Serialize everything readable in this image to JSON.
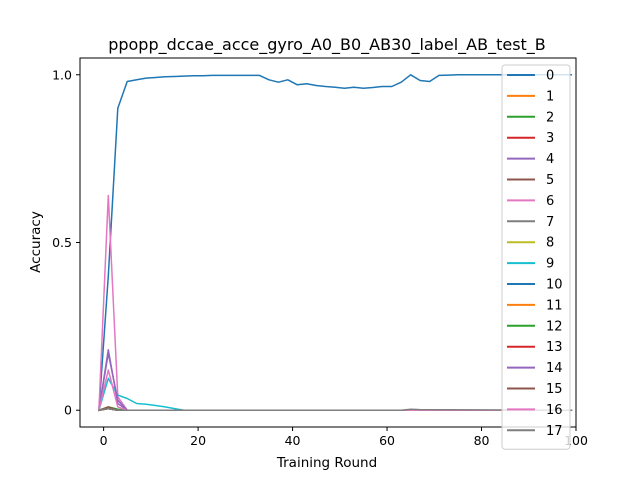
{
  "chart_data": {
    "type": "line",
    "title": "ppopp_dccae_acce_gyro_A0_B0_AB30_label_AB_test_B",
    "xlabel": "Training Round",
    "ylabel": "Accuracy",
    "xlim": [
      -5,
      100
    ],
    "ylim": [
      -0.05,
      1.05
    ],
    "x_ticks": [
      0,
      20,
      40,
      60,
      80,
      100
    ],
    "x_tick_labels": [
      "0",
      "20",
      "40",
      "60",
      "80",
      "100"
    ],
    "y_ticks": [
      0,
      0.5,
      1.0
    ],
    "y_tick_labels": [
      "0",
      "0.5",
      "1.0"
    ],
    "legend_position": "right",
    "series": [
      {
        "name": "0",
        "color": "#1f77b4",
        "x": [
          -1,
          1,
          3,
          5,
          7,
          9,
          11,
          13,
          15,
          17,
          19,
          21,
          23,
          25,
          27,
          29,
          31,
          33,
          35,
          37,
          39,
          41,
          43,
          45,
          47,
          49,
          51,
          53,
          55,
          57,
          59,
          61,
          63,
          65,
          67,
          69,
          71,
          73,
          75,
          77,
          79,
          81,
          83,
          85,
          87,
          89,
          91,
          93,
          95,
          97,
          99
        ],
        "y": [
          0,
          0.4,
          0.9,
          0.98,
          0.985,
          0.99,
          0.992,
          0.994,
          0.995,
          0.996,
          0.997,
          0.997,
          0.998,
          0.998,
          0.998,
          0.998,
          0.998,
          0.998,
          0.985,
          0.978,
          0.985,
          0.97,
          0.973,
          0.968,
          0.965,
          0.963,
          0.96,
          0.963,
          0.96,
          0.962,
          0.965,
          0.965,
          0.978,
          1.0,
          0.983,
          0.98,
          0.998,
          0.999,
          1.0,
          1.0,
          1.0,
          1.0,
          1.0,
          1.0,
          1.0,
          1.0,
          1.0,
          1.0,
          1.0,
          1.0,
          1.0
        ]
      },
      {
        "name": "1",
        "color": "#ff7f0e",
        "x": [
          -1,
          1,
          3,
          5,
          99
        ],
        "y": [
          0,
          0.005,
          0,
          0,
          0
        ]
      },
      {
        "name": "2",
        "color": "#2ca02c",
        "x": [
          -1,
          1,
          3,
          5,
          99
        ],
        "y": [
          0,
          0.01,
          0.003,
          0,
          0
        ]
      },
      {
        "name": "3",
        "color": "#d62728",
        "x": [
          -1,
          1,
          3,
          5,
          99
        ],
        "y": [
          0,
          0.005,
          0,
          0,
          0
        ]
      },
      {
        "name": "4",
        "color": "#9467bd",
        "x": [
          -1,
          1,
          3,
          5,
          99
        ],
        "y": [
          0,
          0.18,
          0.02,
          0,
          0
        ]
      },
      {
        "name": "5",
        "color": "#8c564b",
        "x": [
          -1,
          1,
          3,
          5,
          99
        ],
        "y": [
          0,
          0.01,
          0,
          0,
          0
        ]
      },
      {
        "name": "6",
        "color": "#e377c2",
        "x": [
          -1,
          1,
          3,
          5,
          99
        ],
        "y": [
          0,
          0.64,
          0.04,
          0,
          0
        ]
      },
      {
        "name": "7",
        "color": "#7f7f7f",
        "x": [
          -1,
          1,
          3,
          5,
          99
        ],
        "y": [
          0,
          0.005,
          0,
          0,
          0
        ]
      },
      {
        "name": "8",
        "color": "#bcbd22",
        "x": [
          -1,
          1,
          3,
          5,
          99
        ],
        "y": [
          0,
          0.005,
          0,
          0,
          0
        ]
      },
      {
        "name": "9",
        "color": "#17becf",
        "x": [
          -1,
          1,
          3,
          5,
          7,
          9,
          11,
          13,
          15,
          17,
          99
        ],
        "y": [
          0,
          0.095,
          0.045,
          0.035,
          0.02,
          0.018,
          0.014,
          0.01,
          0.005,
          0,
          0
        ]
      },
      {
        "name": "10",
        "color": "#1f77b4",
        "x": [
          -1,
          1,
          3,
          5,
          99
        ],
        "y": [
          0,
          0.005,
          0,
          0,
          0
        ]
      },
      {
        "name": "11",
        "color": "#ff7f0e",
        "x": [
          -1,
          1,
          3,
          5,
          99
        ],
        "y": [
          0,
          0.005,
          0,
          0,
          0
        ]
      },
      {
        "name": "12",
        "color": "#2ca02c",
        "x": [
          -1,
          1,
          3,
          5,
          99
        ],
        "y": [
          0,
          0.005,
          0,
          0,
          0
        ]
      },
      {
        "name": "13",
        "color": "#d62728",
        "x": [
          -1,
          1,
          3,
          5,
          99
        ],
        "y": [
          0,
          0.005,
          0,
          0,
          0
        ]
      },
      {
        "name": "14",
        "color": "#9467bd",
        "x": [
          -1,
          1,
          3,
          5,
          99
        ],
        "y": [
          0,
          0.17,
          0.03,
          0,
          0
        ]
      },
      {
        "name": "15",
        "color": "#8c564b",
        "x": [
          -1,
          1,
          3,
          5,
          99
        ],
        "y": [
          0,
          0.005,
          0,
          0,
          0
        ]
      },
      {
        "name": "16",
        "color": "#e377c2",
        "x": [
          -1,
          1,
          3,
          5,
          99
        ],
        "y": [
          0,
          0.12,
          0.01,
          0,
          0
        ]
      },
      {
        "name": "17",
        "color": "#7f7f7f",
        "x": [
          -1,
          1,
          3,
          5,
          63,
          65,
          67,
          99
        ],
        "y": [
          0,
          0.005,
          0,
          0,
          0,
          0.003,
          0.002,
          0
        ]
      }
    ]
  }
}
